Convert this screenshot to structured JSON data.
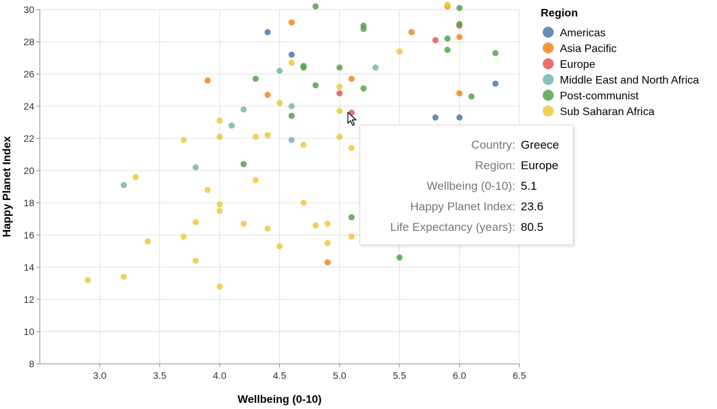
{
  "chart_data": {
    "type": "scatter",
    "title": "",
    "xlabel": "Wellbeing (0-10)",
    "ylabel": "Happy Planet Index",
    "xlim": [
      2.5,
      6.5
    ],
    "ylim": [
      8,
      30
    ],
    "xticks": [
      3.0,
      3.5,
      4.0,
      4.5,
      5.0,
      5.5,
      6.0,
      6.5
    ],
    "yticks": [
      8,
      10,
      12,
      14,
      16,
      18,
      20,
      22,
      24,
      26,
      28,
      30
    ],
    "grid": true,
    "legend": {
      "title": "Region",
      "placement": "right"
    },
    "series": [
      {
        "name": "Americas",
        "color": "#4c78a8",
        "points": [
          [
            4.4,
            28.6
          ],
          [
            4.6,
            27.2
          ],
          [
            6.3,
            25.4
          ],
          [
            5.8,
            23.3
          ],
          [
            6.0,
            23.3
          ]
        ]
      },
      {
        "name": "Asia Pacific",
        "color": "#f58518",
        "points": [
          [
            4.6,
            29.2
          ],
          [
            5.6,
            28.6
          ],
          [
            6.0,
            28.3
          ],
          [
            3.9,
            25.6
          ],
          [
            5.1,
            25.7
          ],
          [
            4.4,
            24.7
          ],
          [
            6.0,
            24.8
          ],
          [
            4.9,
            14.3
          ],
          [
            5.9,
            30.2
          ]
        ]
      },
      {
        "name": "Europe",
        "color": "#e45756",
        "points": [
          [
            5.8,
            28.1
          ],
          [
            6.0,
            29.0
          ],
          [
            5.0,
            24.8
          ],
          [
            5.1,
            23.6
          ]
        ]
      },
      {
        "name": "Middle East and North Africa",
        "color": "#72b7b2",
        "points": [
          [
            4.5,
            26.2
          ],
          [
            5.3,
            26.4
          ],
          [
            4.6,
            24.0
          ],
          [
            4.2,
            23.8
          ],
          [
            4.1,
            22.8
          ],
          [
            4.6,
            21.9
          ],
          [
            3.8,
            20.2
          ],
          [
            3.2,
            19.1
          ]
        ]
      },
      {
        "name": "Post-communist",
        "color": "#54a24b",
        "points": [
          [
            4.8,
            30.2
          ],
          [
            6.0,
            30.1
          ],
          [
            5.2,
            29.0
          ],
          [
            5.2,
            28.8
          ],
          [
            6.0,
            29.1
          ],
          [
            5.9,
            28.2
          ],
          [
            5.9,
            27.5
          ],
          [
            6.3,
            27.3
          ],
          [
            4.3,
            25.7
          ],
          [
            4.7,
            26.5
          ],
          [
            4.7,
            26.4
          ],
          [
            5.0,
            26.4
          ],
          [
            4.8,
            25.3
          ],
          [
            5.2,
            25.1
          ],
          [
            6.1,
            24.6
          ],
          [
            4.6,
            23.4
          ],
          [
            4.2,
            20.4
          ],
          [
            5.1,
            17.1
          ],
          [
            5.5,
            14.6
          ]
        ]
      },
      {
        "name": "Sub Saharan Africa",
        "color": "#eeca3b",
        "points": [
          [
            5.9,
            30.3
          ],
          [
            5.5,
            27.4
          ],
          [
            4.6,
            26.7
          ],
          [
            5.0,
            25.2
          ],
          [
            4.5,
            24.2
          ],
          [
            5.0,
            23.7
          ],
          [
            4.0,
            23.1
          ],
          [
            3.7,
            21.9
          ],
          [
            4.0,
            22.1
          ],
          [
            4.3,
            22.1
          ],
          [
            4.4,
            22.2
          ],
          [
            5.0,
            22.1
          ],
          [
            4.7,
            21.6
          ],
          [
            5.1,
            21.4
          ],
          [
            3.3,
            19.6
          ],
          [
            4.3,
            19.4
          ],
          [
            3.9,
            18.8
          ],
          [
            4.7,
            18.0
          ],
          [
            4.0,
            17.9
          ],
          [
            4.0,
            17.5
          ],
          [
            3.8,
            16.8
          ],
          [
            4.2,
            16.7
          ],
          [
            4.4,
            16.4
          ],
          [
            4.8,
            16.6
          ],
          [
            4.9,
            16.7
          ],
          [
            3.7,
            15.9
          ],
          [
            5.1,
            15.9
          ],
          [
            3.4,
            15.6
          ],
          [
            4.9,
            15.5
          ],
          [
            4.5,
            15.3
          ],
          [
            3.8,
            14.4
          ],
          [
            3.2,
            13.4
          ],
          [
            2.9,
            13.2
          ],
          [
            4.0,
            12.8
          ]
        ]
      }
    ]
  },
  "tooltip": {
    "rows": [
      {
        "key": "Country:",
        "value": "Greece"
      },
      {
        "key": "Region:",
        "value": "Europe"
      },
      {
        "key": "Wellbeing (0-10):",
        "value": "5.1"
      },
      {
        "key": "Happy Planet Index:",
        "value": "23.6"
      },
      {
        "key": "Life Expectancy (years):",
        "value": "80.5"
      }
    ]
  }
}
